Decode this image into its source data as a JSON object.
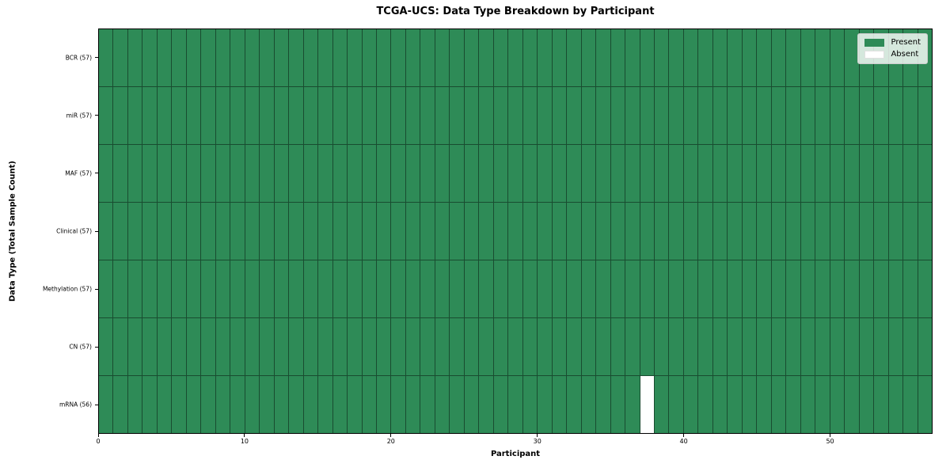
{
  "figure": {
    "title": "TCGA-UCS: Data Type Breakdown by Participant",
    "xlabel": "Participant",
    "ylabel": "Data Type (Total Sample Count)"
  },
  "legend": {
    "items": [
      {
        "label": "Present",
        "color": "#2e8b57"
      },
      {
        "label": "Absent",
        "color": "#ffffff"
      }
    ]
  },
  "chart_data": {
    "type": "heatmap",
    "title": "TCGA-UCS: Data Type Breakdown by Participant",
    "xlabel": "Participant",
    "ylabel": "Data Type (Total Sample Count)",
    "n_participants": 57,
    "xlim": [
      0,
      57
    ],
    "x_ticks": [
      0,
      10,
      20,
      30,
      40,
      50
    ],
    "legend_position": "upper right",
    "legend_entries": [
      "Present",
      "Absent"
    ],
    "rows": [
      {
        "data_type": "BCR",
        "total_samples": 57,
        "label": "BCR (57)",
        "absent_participant_indices": []
      },
      {
        "data_type": "miR",
        "total_samples": 57,
        "label": "miR (57)",
        "absent_participant_indices": []
      },
      {
        "data_type": "MAF",
        "total_samples": 57,
        "label": "MAF (57)",
        "absent_participant_indices": []
      },
      {
        "data_type": "Clinical",
        "total_samples": 57,
        "label": "Clinical (57)",
        "absent_participant_indices": []
      },
      {
        "data_type": "Methylation",
        "total_samples": 57,
        "label": "Methylation (57)",
        "absent_participant_indices": []
      },
      {
        "data_type": "CN",
        "total_samples": 57,
        "label": "CN (57)",
        "absent_participant_indices": []
      },
      {
        "data_type": "mRNA",
        "total_samples": 56,
        "label": "mRNA (56)",
        "absent_participant_indices": [
          37
        ]
      }
    ],
    "colors": {
      "present": "#2e8b57",
      "absent": "#ffffff",
      "cell_border": "#194c30",
      "axis": "#000000"
    }
  }
}
